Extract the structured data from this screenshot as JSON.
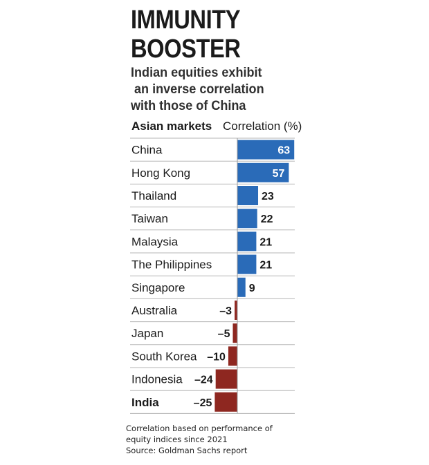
{
  "title": "IMMUNITY\nBOOSTER",
  "subtitle": "Indian equities exhibit\n an inverse correlation\nwith those of China",
  "columns": {
    "left": "Asian markets",
    "right": "Correlation (%)"
  },
  "footnote": "Correlation based on performance of\nequity indices since 2021\nSource: Goldman Sachs report",
  "colors": {
    "positive": "#2a6bb8",
    "negative": "#8e2720",
    "grid": "#b5b5b5"
  },
  "chart_data": {
    "type": "bar",
    "orientation": "horizontal",
    "xlabel": "",
    "ylabel": "",
    "categories": [
      "China",
      "Hong Kong",
      "Thailand",
      "Taiwan",
      "Malaysia",
      "The Philippines",
      "Singapore",
      "Australia",
      "Japan",
      "South Korea",
      "Indonesia",
      "India"
    ],
    "values": [
      63,
      57,
      23,
      22,
      21,
      21,
      9,
      -3,
      -5,
      -10,
      -24,
      -25
    ],
    "value_labels": [
      "63",
      "57",
      "23",
      "22",
      "21",
      "21",
      "9",
      "–3",
      "–5",
      "–10",
      "–24",
      "–25"
    ],
    "highlight": "India",
    "xlim": [
      -27,
      68
    ],
    "grid": true
  }
}
